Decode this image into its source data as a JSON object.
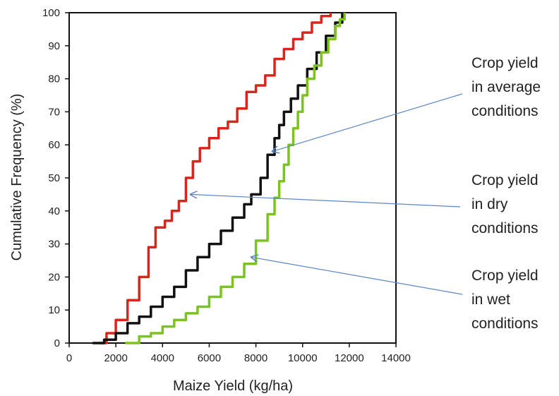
{
  "chart_data": {
    "type": "line",
    "title": "",
    "xlabel": "Maize Yield (kg/ha)",
    "ylabel": "Cumulative Frequency (%)",
    "xlim": [
      0,
      14000
    ],
    "ylim": [
      0,
      100
    ],
    "xticks": [
      0,
      2000,
      4000,
      6000,
      8000,
      10000,
      12000,
      14000
    ],
    "yticks": [
      0,
      10,
      20,
      30,
      40,
      50,
      60,
      70,
      80,
      90,
      100
    ],
    "grid": false,
    "series": [
      {
        "color": "#d9261c",
        "x": [
          1300,
          1600,
          2000,
          2500,
          3000,
          3400,
          3700,
          4100,
          4400,
          4700,
          5000,
          5300,
          5600,
          6000,
          6400,
          6800,
          7200,
          7600,
          8000,
          8400,
          8800,
          9200,
          9600,
          10000,
          10400,
          10800,
          11200
        ],
        "y": [
          0,
          3,
          7,
          13,
          20,
          29,
          35,
          37,
          40,
          43,
          50,
          55,
          59,
          62,
          65,
          67,
          71,
          76,
          78,
          81,
          86,
          89,
          92,
          94,
          97,
          99,
          100
        ]
      },
      {
        "color": "#111111",
        "x": [
          1000,
          1500,
          2000,
          2500,
          3000,
          3500,
          4000,
          4500,
          5000,
          5500,
          6000,
          6500,
          7000,
          7500,
          7800,
          8200,
          8500,
          8800,
          9000,
          9200,
          9500,
          9800,
          10200,
          10600,
          11000,
          11400,
          11700
        ],
        "y": [
          0,
          1,
          3,
          6,
          8,
          11,
          14,
          17,
          22,
          26,
          30,
          34,
          38,
          42,
          45,
          50,
          57,
          62,
          66,
          70,
          74,
          78,
          83,
          88,
          93,
          97,
          100
        ]
      },
      {
        "color": "#7dc31f",
        "x": [
          2400,
          3000,
          3500,
          4000,
          4500,
          5000,
          5500,
          6000,
          6500,
          7000,
          7500,
          8000,
          8500,
          8800,
          9000,
          9200,
          9400,
          9600,
          9800,
          10000,
          10200,
          10500,
          10800,
          11100,
          11400,
          11600,
          11800
        ],
        "y": [
          0,
          2,
          3,
          5,
          7,
          9,
          11,
          14,
          17,
          20,
          24,
          31,
          39,
          44,
          49,
          54,
          60,
          65,
          70,
          75,
          80,
          84,
          88,
          92,
          96,
          98,
          100
        ]
      }
    ],
    "annotations": [
      {
        "lines": [
          "Crop yield",
          "in average",
          "conditions"
        ],
        "arrow_to": [
          8700,
          58
        ]
      },
      {
        "lines": [
          "Crop yield",
          "in dry",
          "conditions"
        ],
        "arrow_to": [
          5200,
          45
        ]
      },
      {
        "lines": [
          "Crop yield",
          "in wet",
          "conditions"
        ],
        "arrow_to": [
          7800,
          26
        ]
      }
    ],
    "colors": {
      "arrow": "#5b86c9",
      "axis": "#111111"
    }
  }
}
